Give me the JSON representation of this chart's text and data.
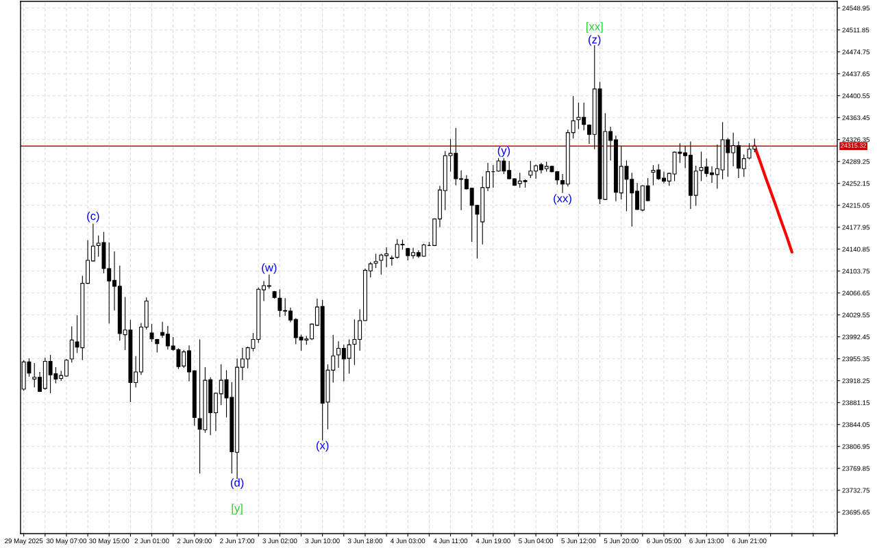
{
  "chart_data": {
    "type": "candlestick",
    "categories": [
      "29 May 2025",
      null,
      null,
      null,
      null,
      null,
      null,
      null,
      "30 May 07:00",
      null,
      null,
      null,
      null,
      null,
      null,
      null,
      "30 May 15:00",
      null,
      null,
      null,
      null,
      null,
      null,
      null,
      "2 Jun 01:00",
      null,
      null,
      null,
      null,
      null,
      null,
      null,
      "2 Jun 09:00",
      null,
      null,
      null,
      null,
      null,
      null,
      null,
      "2 Jun 17:00",
      null,
      null,
      null,
      null,
      null,
      null,
      null,
      "3 Jun 02:00",
      null,
      null,
      null,
      null,
      null,
      null,
      null,
      "3 Jun 10:00",
      null,
      null,
      null,
      null,
      null,
      null,
      null,
      "3 Jun 18:00",
      null,
      null,
      null,
      null,
      null,
      null,
      null,
      "4 Jun 03:00",
      null,
      null,
      null,
      null,
      null,
      null,
      null,
      "4 Jun 11:00",
      null,
      null,
      null,
      null,
      null,
      null,
      null,
      "4 Jun 19:00",
      null,
      null,
      null,
      null,
      null,
      null,
      null,
      "5 Jun 04:00",
      null,
      null,
      null,
      null,
      null,
      null,
      null,
      "5 Jun 12:00",
      null,
      null,
      null,
      null,
      null,
      null,
      null,
      "5 Jun 20:00",
      null,
      null,
      null,
      null,
      null,
      null,
      null,
      "6 Jun 05:00",
      null,
      null,
      null,
      null,
      null,
      null,
      null,
      "6 Jun 13:00",
      null,
      null,
      null,
      null,
      null,
      null,
      null,
      "6 Jun 21:00",
      null,
      null,
      null,
      null,
      null,
      null,
      null,
      null,
      null,
      null,
      null,
      null,
      null,
      null,
      null,
      null
    ],
    "ohlc": [
      [
        23904,
        23953,
        23901,
        23950
      ],
      [
        23950,
        23956,
        23925,
        23931
      ],
      [
        23921,
        23948,
        23907,
        23924
      ],
      [
        23924,
        23933,
        23899,
        23900
      ],
      [
        23905,
        23957,
        23903,
        23951
      ],
      [
        23951,
        23962,
        23897,
        23928
      ],
      [
        23930,
        23941,
        23914,
        23921
      ],
      [
        23922,
        23935,
        23918,
        23927
      ],
      [
        23926,
        23955,
        23925,
        23953
      ],
      [
        23955,
        24010,
        23949,
        23987
      ],
      [
        23984,
        24029,
        23965,
        23975
      ],
      [
        23974,
        24096,
        23953,
        24083
      ],
      [
        24083,
        24156,
        24082,
        24122
      ],
      [
        24121,
        24184,
        24120,
        24146
      ],
      [
        24147,
        24164,
        24128,
        24151
      ],
      [
        24152,
        24170,
        24100,
        24108
      ],
      [
        24108,
        24152,
        24015,
        24087
      ],
      [
        24088,
        24137,
        24037,
        24078
      ],
      [
        24078,
        24113,
        23986,
        23998
      ],
      [
        23996,
        24060,
        23970,
        24004
      ],
      [
        24004,
        24021,
        23882,
        23915
      ],
      [
        23915,
        23960,
        23907,
        23933
      ],
      [
        23933,
        24016,
        23928,
        24009
      ],
      [
        24009,
        24059,
        24005,
        24053
      ],
      [
        23999,
        24014,
        23984,
        23989
      ],
      [
        23988,
        23989,
        23966,
        23981
      ],
      [
        24000,
        24018,
        23991,
        23995
      ],
      [
        23997,
        24011,
        23971,
        23977
      ],
      [
        23977,
        23992,
        23969,
        23971
      ],
      [
        23971,
        23973,
        23938,
        23942
      ],
      [
        23943,
        23970,
        23940,
        23967
      ],
      [
        23969,
        23978,
        23917,
        23933
      ],
      [
        23935,
        23936,
        23842,
        23856
      ],
      [
        23854,
        23988,
        23761,
        23836
      ],
      [
        23835,
        23941,
        23830,
        23919
      ],
      [
        23920,
        23924,
        23826,
        23864
      ],
      [
        23864,
        23898,
        23833,
        23897
      ],
      [
        23896,
        23946,
        23877,
        23919
      ],
      [
        23920,
        23936,
        23856,
        23889
      ],
      [
        23890,
        23916,
        23761,
        23798
      ],
      [
        23797,
        23956,
        23752,
        23941
      ],
      [
        23941,
        23974,
        23919,
        23955
      ],
      [
        23955,
        23976,
        23939,
        23974
      ],
      [
        23973,
        23999,
        23968,
        23988
      ],
      [
        23988,
        24076,
        23982,
        24073
      ],
      [
        24072,
        24087,
        24053,
        24079
      ],
      [
        24079,
        24098,
        24074,
        24078
      ],
      [
        24069,
        24070,
        24057,
        24059
      ],
      [
        24058,
        24073,
        24026,
        24037
      ],
      [
        24037,
        24058,
        24028,
        24036
      ],
      [
        24036,
        24042,
        24017,
        24021
      ],
      [
        24022,
        24024,
        23980,
        23991
      ],
      [
        23992,
        23996,
        23969,
        23987
      ],
      [
        23987,
        23994,
        23979,
        23989
      ],
      [
        23989,
        24015,
        23987,
        24014
      ],
      [
        24012,
        24057,
        24011,
        24043
      ],
      [
        24044,
        24055,
        23817,
        23880
      ],
      [
        23882,
        23946,
        23836,
        23936
      ],
      [
        23936,
        23996,
        23915,
        23960
      ],
      [
        23962,
        23985,
        23940,
        23973
      ],
      [
        23973,
        23979,
        23917,
        23955
      ],
      [
        23956,
        23988,
        23930,
        23979
      ],
      [
        23980,
        24022,
        23945,
        23988
      ],
      [
        23988,
        24039,
        23969,
        24020
      ],
      [
        24020,
        24108,
        24019,
        24105
      ],
      [
        24104,
        24119,
        24093,
        24116
      ],
      [
        24117,
        24133,
        24109,
        24120
      ],
      [
        24122,
        24133,
        24098,
        24131
      ],
      [
        24130,
        24144,
        24110,
        24133
      ],
      [
        24126,
        24130,
        24113,
        24125
      ],
      [
        24127,
        24158,
        24125,
        24149
      ],
      [
        24149,
        24157,
        24140,
        24148
      ],
      [
        24142,
        24143,
        24122,
        24130
      ],
      [
        24130,
        24143,
        24125,
        24135
      ],
      [
        24135,
        24139,
        24126,
        24129
      ],
      [
        24129,
        24150,
        24128,
        24148
      ],
      [
        24147,
        24153,
        24146,
        24147
      ],
      [
        24147,
        24193,
        24146,
        24192
      ],
      [
        24192,
        24248,
        24178,
        24241
      ],
      [
        24240,
        24307,
        24207,
        24299
      ],
      [
        24299,
        24327,
        24272,
        24303
      ],
      [
        24303,
        24346,
        24249,
        24260
      ],
      [
        24260,
        24274,
        24207,
        24259
      ],
      [
        24259,
        24266,
        24242,
        24243
      ],
      [
        24244,
        24245,
        24153,
        24215
      ],
      [
        24215,
        24216,
        24125,
        24200
      ],
      [
        24187,
        24264,
        24149,
        24245
      ],
      [
        24245,
        24287,
        24239,
        24272
      ],
      [
        24272,
        24283,
        24245,
        24272
      ],
      [
        24273,
        24295,
        24272,
        24290
      ],
      [
        24290,
        24295,
        24268,
        24273
      ],
      [
        24274,
        24290,
        24259,
        24260
      ],
      [
        24260,
        24261,
        24248,
        24249
      ],
      [
        24252,
        24270,
        24245,
        24256
      ],
      [
        24257,
        24259,
        24245,
        24255
      ],
      [
        24266,
        24290,
        24261,
        24273
      ],
      [
        24273,
        24284,
        24260,
        24282
      ],
      [
        24284,
        24287,
        24269,
        24275
      ],
      [
        24277,
        24289,
        24272,
        24281
      ],
      [
        24281,
        24282,
        24271,
        24272
      ],
      [
        24272,
        24273,
        24250,
        24258
      ],
      [
        24257,
        24268,
        24236,
        24251
      ],
      [
        24251,
        24343,
        24247,
        24338
      ],
      [
        24338,
        24400,
        24328,
        24358
      ],
      [
        24360,
        24389,
        24344,
        24364
      ],
      [
        24364,
        24389,
        24342,
        24352
      ],
      [
        24351,
        24352,
        24319,
        24335
      ],
      [
        24335,
        24486,
        24310,
        24412
      ],
      [
        24412,
        24424,
        24217,
        24226
      ],
      [
        24225,
        24371,
        24224,
        24340
      ],
      [
        24340,
        24348,
        24291,
        24325
      ],
      [
        24326,
        24333,
        24222,
        24237
      ],
      [
        24236,
        24316,
        24225,
        24281
      ],
      [
        24281,
        24291,
        24205,
        24259
      ],
      [
        24259,
        24270,
        24179,
        24236
      ],
      [
        24239,
        24253,
        24207,
        24208
      ],
      [
        24207,
        24249,
        24205,
        24248
      ],
      [
        24248,
        24261,
        24222,
        24223
      ],
      [
        24271,
        24283,
        24249,
        24274
      ],
      [
        24275,
        24285,
        24258,
        24260
      ],
      [
        24261,
        24272,
        24252,
        24256
      ],
      [
        24256,
        24270,
        24248,
        24269
      ],
      [
        24268,
        24306,
        24256,
        24305
      ],
      [
        24305,
        24320,
        24287,
        24303
      ],
      [
        24304,
        24316,
        24278,
        24299
      ],
      [
        24300,
        24323,
        24209,
        24232
      ],
      [
        24232,
        24282,
        24214,
        24273
      ],
      [
        24274,
        24306,
        24256,
        24279
      ],
      [
        24280,
        24294,
        24263,
        24269
      ],
      [
        24270,
        24281,
        24253,
        24267
      ],
      [
        24267,
        24318,
        24243,
        24277
      ],
      [
        24275,
        24356,
        24259,
        24326
      ],
      [
        24326,
        24329,
        24263,
        24304
      ],
      [
        24304,
        24338,
        24281,
        24316
      ],
      [
        24316,
        24323,
        24261,
        24278
      ],
      [
        24277,
        24301,
        24263,
        24294
      ],
      [
        24295,
        24320,
        24293,
        24310
      ],
      [
        24310,
        24328,
        24305,
        24315
      ],
      null,
      null,
      null,
      null,
      null,
      null,
      null,
      null,
      null,
      null,
      null,
      null,
      null,
      null,
      null
    ],
    "series": [
      {
        "type": "line",
        "color": "#ff0000",
        "values": [
          null,
          null,
          null,
          null,
          null,
          null,
          null,
          null,
          null,
          null,
          null,
          null,
          null,
          null,
          null,
          null,
          null,
          null,
          null,
          null,
          null,
          null,
          null,
          null,
          null,
          null,
          null,
          null,
          null,
          null,
          null,
          null,
          null,
          null,
          null,
          null,
          null,
          null,
          null,
          null,
          null,
          null,
          null,
          null,
          null,
          null,
          null,
          null,
          null,
          null,
          null,
          null,
          null,
          null,
          null,
          null,
          null,
          null,
          null,
          null,
          null,
          null,
          null,
          null,
          null,
          null,
          null,
          null,
          null,
          null,
          null,
          null,
          null,
          null,
          null,
          null,
          null,
          null,
          null,
          null,
          null,
          null,
          null,
          null,
          null,
          null,
          null,
          null,
          null,
          null,
          null,
          null,
          null,
          null,
          null,
          null,
          null,
          null,
          null,
          null,
          null,
          null,
          null,
          null,
          null,
          null,
          null,
          null,
          null,
          null,
          null,
          null,
          null,
          null,
          null,
          null,
          null,
          null,
          null,
          null,
          null,
          null,
          null,
          null,
          null,
          null,
          null,
          null,
          null,
          null,
          null,
          null,
          null,
          null,
          null,
          null,
          null,
          24315,
          24290,
          24264,
          24239,
          24214,
          24188,
          24163,
          24136,
          null,
          null,
          null,
          null,
          null,
          null,
          null,
          null
        ]
      }
    ],
    "ylim": [
      23659.4,
      24560.2
    ],
    "yticks": [
      23695.65,
      23732.75,
      23769.85,
      23806.95,
      23844.05,
      23881.15,
      23918.25,
      23955.35,
      23992.45,
      24029.55,
      24066.65,
      24103.75,
      24140.85,
      24177.95,
      24215.05,
      24252.15,
      24289.25,
      24326.35,
      24363.45,
      24400.55,
      24437.65,
      24474.75,
      24511.85,
      24548.95
    ],
    "grid": true,
    "ref_lines": [
      {
        "axis": "y",
        "value": 24315.32,
        "label": "24315.32",
        "color": "#cc0000"
      }
    ],
    "annotations": [
      "(c)",
      "(w)",
      "(d)",
      "[y]",
      "(x)",
      "(y)",
      "(xx)",
      "(z)",
      "[xx]"
    ]
  }
}
